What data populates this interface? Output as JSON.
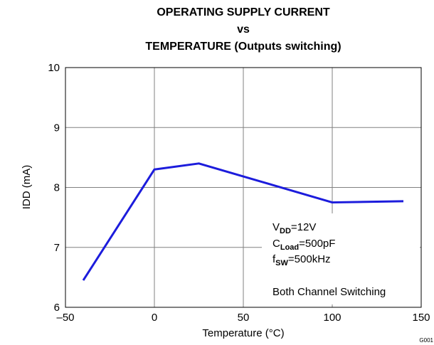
{
  "chart_data": {
    "type": "line",
    "title": [
      "OPERATING SUPPLY CURRENT",
      "vs",
      "TEMPERATURE (Outputs switching)"
    ],
    "x_label": "Temperature (°C)",
    "y_label": "IDD (mA)",
    "x": [
      -40,
      0,
      25,
      100,
      140
    ],
    "series": [
      {
        "name": "IDD",
        "color": "#1c1cdc",
        "values": [
          6.45,
          8.3,
          8.4,
          7.75,
          7.77
        ]
      }
    ],
    "xlim": [
      -50,
      150
    ],
    "xticks": [
      {
        "value": -50,
        "label": "–50"
      },
      0,
      50,
      100,
      150
    ],
    "ylim": [
      6,
      10
    ],
    "yticks": [
      6,
      7,
      8,
      9,
      10
    ],
    "grid": true,
    "annotations": [
      {
        "main": "V",
        "sub": "DD",
        "rest": "=12V"
      },
      {
        "main": "C",
        "sub": "Load",
        "rest": "=500pF"
      },
      {
        "main": "f",
        "sub": "SW",
        "rest": "=500kHz"
      },
      {
        "main": "Both Channel Switching"
      }
    ],
    "figure_id": "G001"
  }
}
